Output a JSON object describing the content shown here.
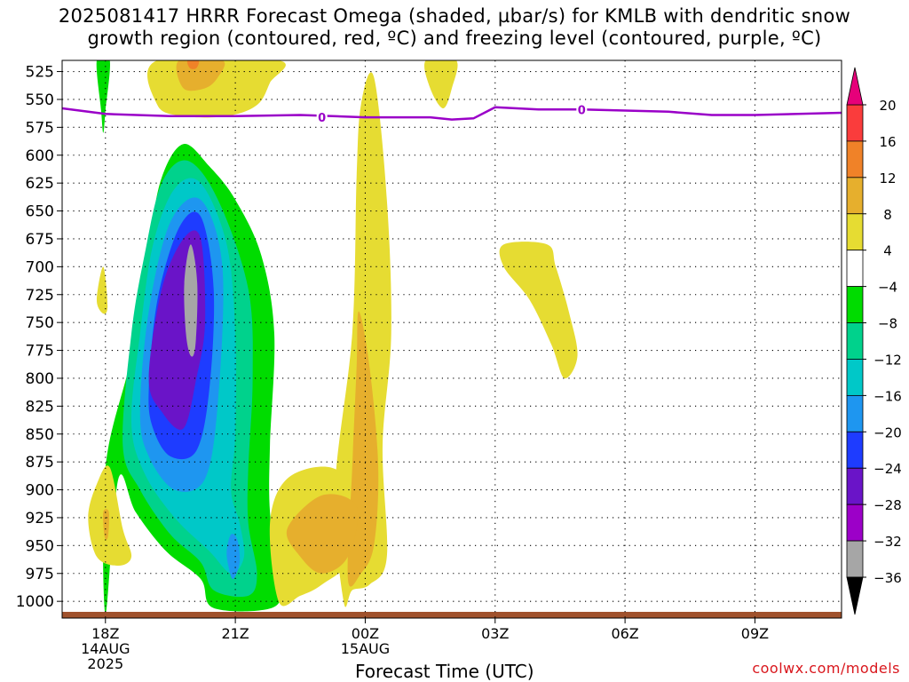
{
  "title": {
    "line1": "2025081417 HRRR Forecast Omega (shaded, µbar/s) for KMLB with dendritic snow",
    "line2": "growth region (contoured, red, ºC) and freezing level (contoured, purple, ºC)"
  },
  "credit": "coolwx.com/models",
  "colors": {
    "freezing_level": "#9a00c8",
    "ground": "#a0522d",
    "scale": [
      "#000000",
      "#a6a6a6",
      "#9c00c8",
      "#6a14c8",
      "#1e3cff",
      "#1e96f0",
      "#00c8c8",
      "#00d28c",
      "#00dc00",
      "#ffffff",
      "#e6dc32",
      "#e6af2d",
      "#f08228",
      "#fa3c3c",
      "#e6007a"
    ]
  },
  "chart_data": {
    "type": "heatmap",
    "title": "2025081417 HRRR Forecast Omega (shaded, µbar/s) for KMLB with dendritic snow growth region (contoured, red, ºC) and freezing level (contoured, purple, ºC)",
    "xlabel": "Forecast Time (UTC)",
    "ylabel": "",
    "x_axis": {
      "unit": "hours after 14AUG2025 18Z",
      "range": [
        -1,
        17
      ],
      "ticks": [
        {
          "value": 0,
          "label": "18Z",
          "sub": [
            "14AUG",
            "2025"
          ]
        },
        {
          "value": 3,
          "label": "21Z",
          "sub": []
        },
        {
          "value": 6,
          "label": "00Z",
          "sub": [
            "15AUG"
          ]
        },
        {
          "value": 9,
          "label": "03Z",
          "sub": []
        },
        {
          "value": 12,
          "label": "06Z",
          "sub": []
        },
        {
          "value": 15,
          "label": "09Z",
          "sub": []
        }
      ]
    },
    "y_axis": {
      "unit": "hPa",
      "range": [
        1015,
        515
      ],
      "ticks": [
        525,
        550,
        575,
        600,
        625,
        650,
        675,
        700,
        725,
        750,
        775,
        800,
        825,
        850,
        875,
        900,
        925,
        950,
        975,
        1000
      ]
    },
    "colorbar": {
      "labels": [
        "20",
        "16",
        "12",
        "8",
        "4",
        "−4",
        "−8",
        "−12",
        "−16",
        "−20",
        "−24",
        "−28",
        "−32",
        "−36"
      ],
      "boundaries": [
        20,
        16,
        12,
        8,
        4,
        -4,
        -8,
        -12,
        -16,
        -20,
        -24,
        -28,
        -32,
        -36
      ]
    },
    "freezing_level": {
      "label": "0",
      "points": [
        [
          -1,
          558
        ],
        [
          0,
          563
        ],
        [
          1.5,
          565
        ],
        [
          3,
          565
        ],
        [
          4.5,
          564
        ],
        [
          6,
          566
        ],
        [
          7.5,
          566
        ],
        [
          8,
          568
        ],
        [
          8.5,
          567
        ],
        [
          9,
          557
        ],
        [
          10,
          559
        ],
        [
          11,
          559
        ],
        [
          12,
          560
        ],
        [
          13,
          561
        ],
        [
          14,
          564
        ],
        [
          15,
          564
        ],
        [
          16,
          563
        ],
        [
          17,
          562
        ]
      ],
      "label_positions": [
        [
          5,
          566
        ],
        [
          11,
          559
        ]
      ]
    },
    "omega_regions": [
      {
        "value": -6,
        "points": [
          [
            0,
            1012
          ],
          [
            0,
            880
          ],
          [
            0.6,
            780
          ],
          [
            1.0,
            680
          ],
          [
            1.3,
            620
          ],
          [
            1.8,
            590
          ],
          [
            2.4,
            610
          ],
          [
            3.0,
            640
          ],
          [
            3.6,
            690
          ],
          [
            3.9,
            760
          ],
          [
            3.8,
            860
          ],
          [
            3.8,
            920
          ],
          [
            4.0,
            975
          ],
          [
            3.9,
            1005
          ],
          [
            2.5,
            1006
          ],
          [
            2.2,
            980
          ],
          [
            1.4,
            955
          ],
          [
            0.7,
            920
          ],
          [
            0.3,
            890
          ]
        ]
      },
      {
        "value": -10,
        "points": [
          [
            0.4,
            860
          ],
          [
            0.6,
            760
          ],
          [
            0.9,
            690
          ],
          [
            1.3,
            625
          ],
          [
            1.9,
            605
          ],
          [
            2.6,
            640
          ],
          [
            3.3,
            720
          ],
          [
            3.4,
            800
          ],
          [
            3.3,
            880
          ],
          [
            3.3,
            930
          ],
          [
            3.5,
            975
          ],
          [
            3.3,
            995
          ],
          [
            2.5,
            990
          ],
          [
            2.2,
            965
          ],
          [
            1.5,
            940
          ],
          [
            0.8,
            900
          ]
        ]
      },
      {
        "value": -14,
        "points": [
          [
            0.6,
            840
          ],
          [
            0.8,
            760
          ],
          [
            1.1,
            680
          ],
          [
            1.6,
            630
          ],
          [
            2.2,
            625
          ],
          [
            2.8,
            680
          ],
          [
            3.0,
            760
          ],
          [
            3.0,
            850
          ],
          [
            2.9,
            900
          ],
          [
            3.1,
            930
          ],
          [
            3.2,
            960
          ],
          [
            2.9,
            975
          ],
          [
            2.4,
            955
          ],
          [
            1.6,
            925
          ],
          [
            0.9,
            885
          ]
        ]
      },
      {
        "value": -18,
        "points": [
          [
            0.8,
            830
          ],
          [
            1.0,
            740
          ],
          [
            1.5,
            660
          ],
          [
            2.2,
            640
          ],
          [
            2.7,
            700
          ],
          [
            2.6,
            820
          ],
          [
            2.3,
            890
          ],
          [
            1.6,
            900
          ],
          [
            1.0,
            870
          ]
        ]
      },
      {
        "value": -18,
        "points": [
          [
            2.8,
            955
          ],
          [
            2.9,
            940
          ],
          [
            3.05,
            945
          ],
          [
            3.1,
            965
          ],
          [
            2.95,
            980
          ],
          [
            2.85,
            970
          ]
        ]
      },
      {
        "value": -22,
        "points": [
          [
            1.0,
            810
          ],
          [
            1.2,
            730
          ],
          [
            1.7,
            665
          ],
          [
            2.2,
            655
          ],
          [
            2.5,
            720
          ],
          [
            2.4,
            810
          ],
          [
            2.1,
            865
          ],
          [
            1.5,
            870
          ],
          [
            1.1,
            845
          ]
        ]
      },
      {
        "value": -26,
        "points": [
          [
            1.0,
            800
          ],
          [
            1.3,
            720
          ],
          [
            1.8,
            675
          ],
          [
            2.2,
            675
          ],
          [
            2.3,
            750
          ],
          [
            2.1,
            800
          ],
          [
            1.8,
            845
          ],
          [
            1.3,
            830
          ]
        ]
      },
      {
        "value": -34,
        "points": [
          [
            1.82,
            715
          ],
          [
            1.97,
            680
          ],
          [
            2.12,
            715
          ],
          [
            2.08,
            770
          ],
          [
            1.97,
            780
          ],
          [
            1.86,
            760
          ]
        ]
      },
      {
        "value": 6,
        "points": [
          [
            1.2,
            515
          ],
          [
            4.0,
            515
          ],
          [
            3.8,
            535
          ],
          [
            3.5,
            555
          ],
          [
            2.8,
            565
          ],
          [
            1.8,
            565
          ],
          [
            1.2,
            555
          ]
        ]
      },
      {
        "value": 10,
        "points": [
          [
            1.7,
            515
          ],
          [
            2.7,
            515
          ],
          [
            2.6,
            530
          ],
          [
            2.3,
            540
          ],
          [
            1.8,
            540
          ]
        ]
      },
      {
        "value": 14,
        "points": [
          [
            1.9,
            515
          ],
          [
            2.15,
            515
          ],
          [
            2.1,
            522
          ],
          [
            1.95,
            522
          ]
        ]
      },
      {
        "value": 6,
        "points": [
          [
            7.4,
            515
          ],
          [
            8.1,
            515
          ],
          [
            8.0,
            540
          ],
          [
            7.8,
            558
          ],
          [
            7.5,
            540
          ]
        ]
      },
      {
        "value": 6,
        "points": [
          [
            5.5,
            1000
          ],
          [
            5.3,
            900
          ],
          [
            5.7,
            760
          ],
          [
            5.8,
            620
          ],
          [
            5.9,
            555
          ],
          [
            6.2,
            530
          ],
          [
            6.5,
            640
          ],
          [
            6.6,
            760
          ],
          [
            6.4,
            860
          ],
          [
            6.5,
            960
          ],
          [
            6.1,
            985
          ],
          [
            5.7,
            990
          ]
        ]
      },
      {
        "value": 6,
        "points": [
          [
            4.0,
            1000
          ],
          [
            3.8,
            930
          ],
          [
            4.2,
            890
          ],
          [
            5.2,
            880
          ],
          [
            5.8,
            905
          ],
          [
            5.7,
            960
          ],
          [
            5.0,
            985
          ],
          [
            4.5,
            995
          ]
        ]
      },
      {
        "value": 10,
        "points": [
          [
            5.6,
            980
          ],
          [
            5.7,
            880
          ],
          [
            5.8,
            790
          ],
          [
            5.85,
            740
          ],
          [
            6.1,
            790
          ],
          [
            6.3,
            880
          ],
          [
            6.2,
            950
          ],
          [
            5.9,
            975
          ]
        ]
      },
      {
        "value": 10,
        "points": [
          [
            4.2,
            935
          ],
          [
            5.0,
            905
          ],
          [
            5.8,
            915
          ],
          [
            5.6,
            960
          ],
          [
            5.0,
            975
          ],
          [
            4.5,
            960
          ]
        ]
      },
      {
        "value": 6,
        "points": [
          [
            9.2,
            680
          ],
          [
            10.2,
            680
          ],
          [
            10.4,
            700
          ],
          [
            10.7,
            740
          ],
          [
            10.9,
            780
          ],
          [
            10.6,
            800
          ],
          [
            10.3,
            770
          ],
          [
            9.8,
            730
          ],
          [
            9.2,
            700
          ]
        ]
      },
      {
        "value": 6,
        "points": [
          [
            -0.4,
            925
          ],
          [
            -0.2,
            895
          ],
          [
            0.1,
            880
          ],
          [
            0.4,
            935
          ],
          [
            0.6,
            960
          ],
          [
            0.3,
            968
          ],
          [
            -0.2,
            960
          ]
        ]
      },
      {
        "value": 10,
        "points": [
          [
            -0.05,
            920
          ],
          [
            0.08,
            920
          ],
          [
            0.06,
            942
          ],
          [
            -0.02,
            942
          ]
        ]
      },
      {
        "value": 6,
        "points": [
          [
            -0.2,
            730
          ],
          [
            -0.05,
            700
          ],
          [
            0.05,
            735
          ],
          [
            -0.05,
            742
          ]
        ]
      },
      {
        "value": -6,
        "points": [
          [
            -0.2,
            515
          ],
          [
            0.1,
            515
          ],
          [
            0.0,
            560
          ],
          [
            -0.05,
            580
          ],
          [
            -0.1,
            560
          ]
        ]
      }
    ]
  }
}
